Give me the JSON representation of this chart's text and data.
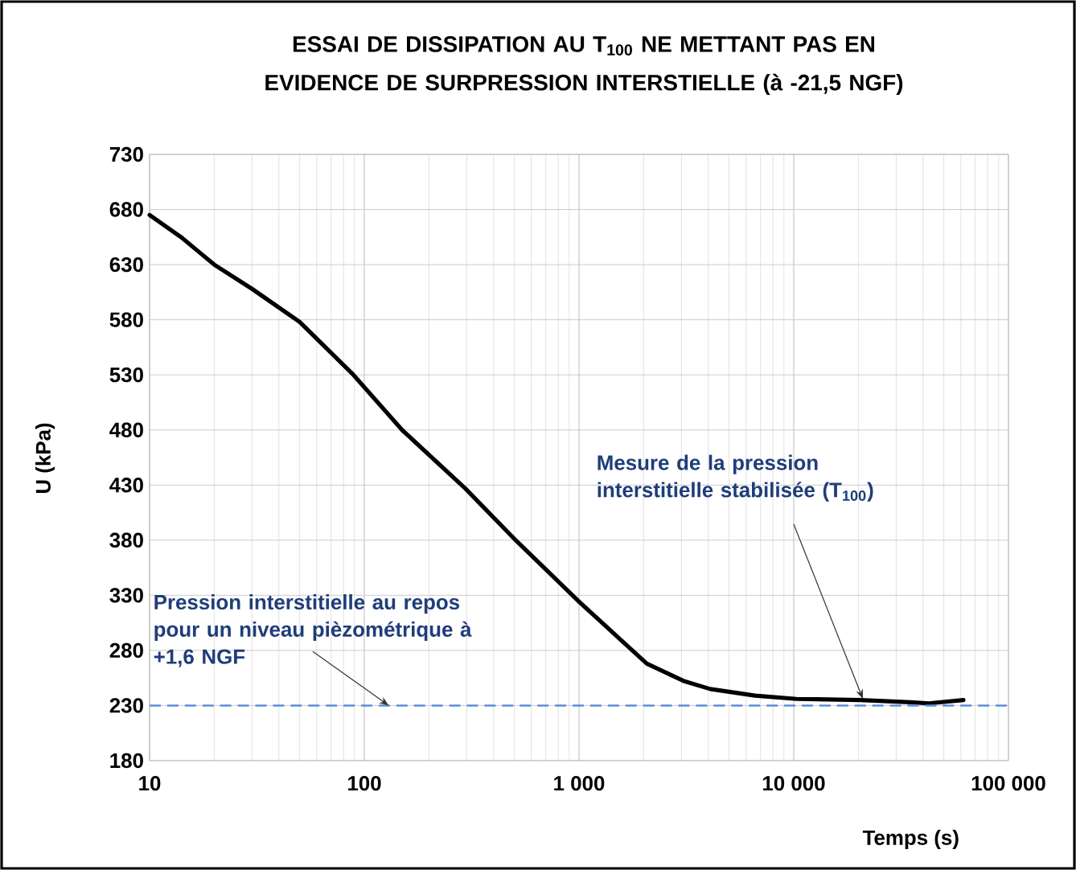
{
  "chart_data": {
    "type": "line",
    "title": "ESSAI DE DISSIPATION AU T$_{100}$ NE METTANT PAS EN EVIDENCE DE SURPRESSION INTERSTIELLE (à -21,5 NGF)",
    "xlabel": "Temps (s)",
    "ylabel": "U (kPa)",
    "series": [
      {
        "color": "#000000",
        "x": [
          10,
          14,
          20,
          30,
          50,
          89,
          150,
          295,
          513,
          990,
          2070,
          3100,
          4080,
          6600,
          10300,
          20400,
          35000,
          42600,
          61700
        ],
        "values": [
          675,
          655,
          630,
          608,
          578,
          530,
          480,
          427,
          379,
          325,
          268,
          252,
          245,
          239,
          236,
          235,
          233,
          232,
          235
        ]
      }
    ],
    "log": "x",
    "grid": true,
    "xlim": [
      10,
      100000
    ],
    "ylim": [
      180,
      730
    ],
    "xticks": [
      {
        "value": 10,
        "label": "10"
      },
      {
        "value": 100,
        "label": "100"
      },
      {
        "value": 1000,
        "label": "1 000"
      },
      {
        "value": 10000,
        "label": "10 000"
      },
      {
        "value": 100000,
        "label": "100 000"
      }
    ],
    "yticks": [
      180,
      230,
      280,
      330,
      380,
      430,
      480,
      530,
      580,
      630,
      680,
      730
    ],
    "ref_lines": [
      {
        "axis": "y",
        "value": 230,
        "color": "#5b8fd6",
        "line_style": "dashed"
      }
    ],
    "annotations": [
      {
        "text": "Pression interstitielle au repos pour un niveau pièzométrique à +1,6 NGF",
        "x": 130,
        "y": 230
      },
      {
        "text": "Mesure de la pression interstitielle stabilisée (T$_{100}$)",
        "x": 21000,
        "y": 236
      }
    ]
  }
}
